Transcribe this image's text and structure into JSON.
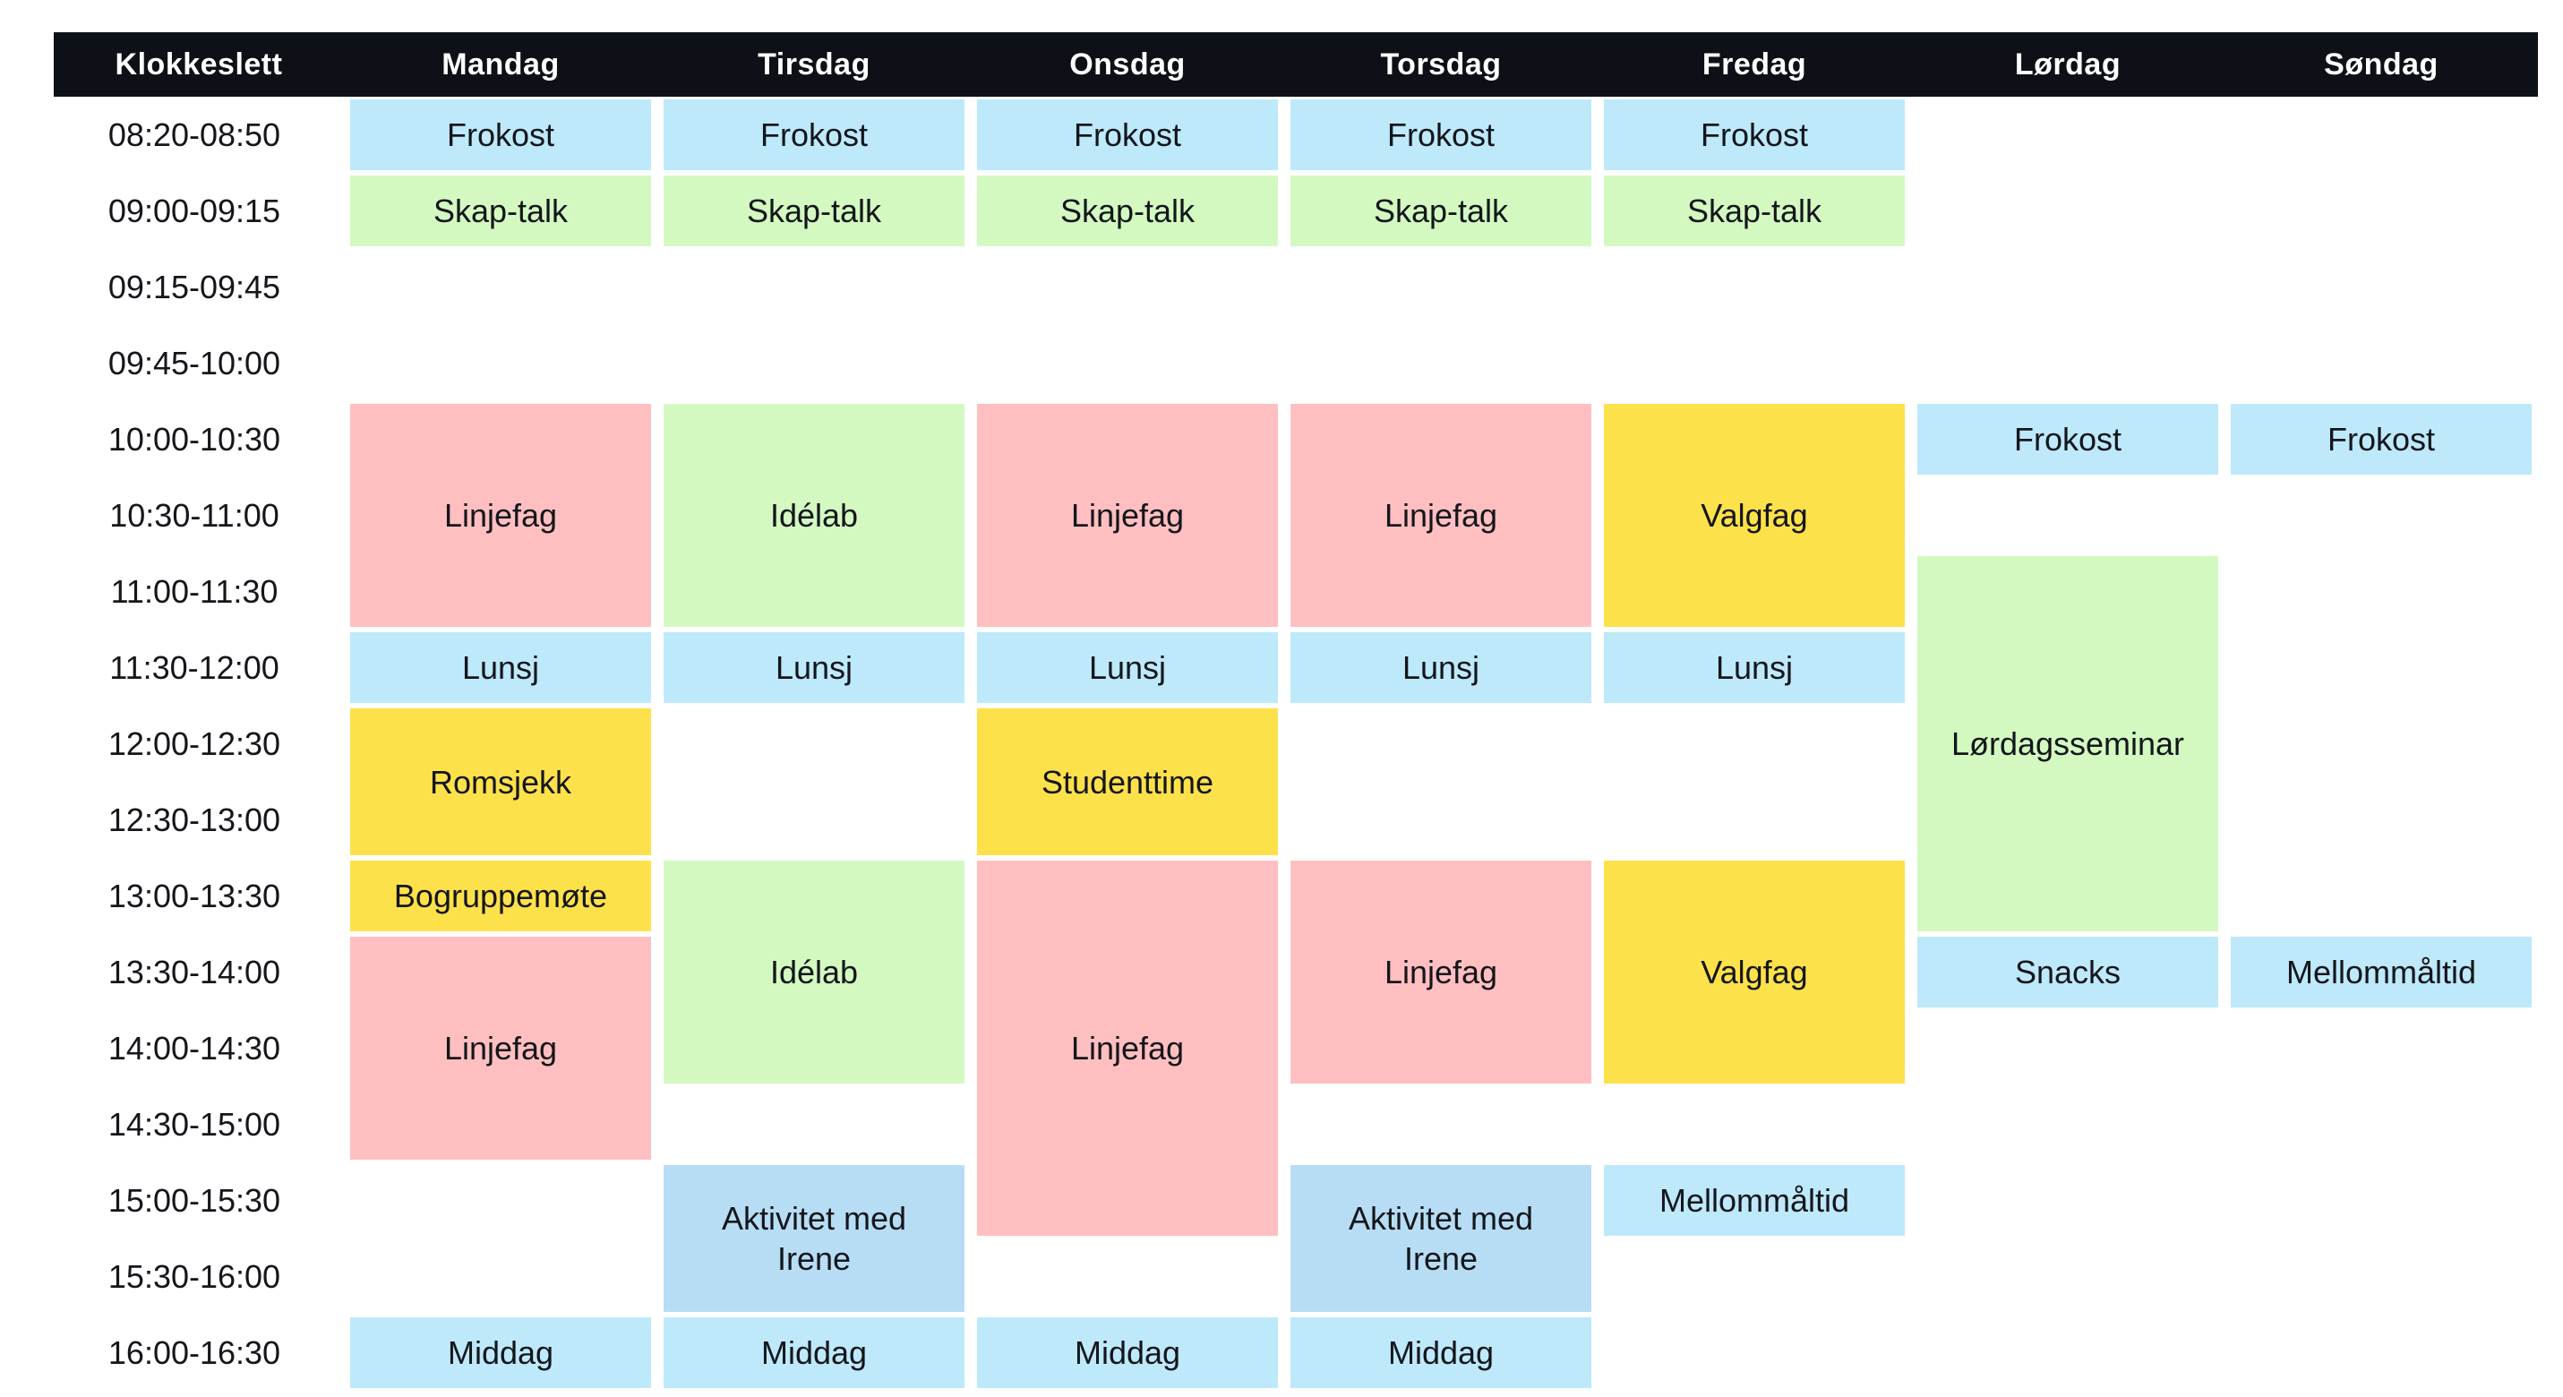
{
  "header": {
    "columns": [
      "Klokkeslett",
      "Mandag",
      "Tirsdag",
      "Onsdag",
      "Torsdag",
      "Fredag",
      "Lørdag",
      "Søndag"
    ]
  },
  "time_slots": [
    "08:20-08:50",
    "09:00-09:15",
    "09:15-09:45",
    "09:45-10:00",
    "10:00-10:30",
    "10:30-11:00",
    "11:00-11:30",
    "11:30-12:00",
    "12:00-12:30",
    "12:30-13:00",
    "13:00-13:30",
    "13:30-14:00",
    "14:00-14:30",
    "14:30-15:00",
    "15:00-15:30",
    "15:30-16:00",
    "16:00-16:30"
  ],
  "colors": {
    "header_bg": "#0d1117",
    "header_text": "#ffffff",
    "time_bg": "#f5f5f5",
    "text": "#14161b",
    "blue": "#bde9fb",
    "activity_blue": "#b7ddf4",
    "green": "#d3f9c1",
    "pink": "#ffbfc1",
    "yellow": "#fde14b"
  },
  "events": [
    {
      "label": "Frokost",
      "day": 1,
      "row": 1,
      "span": 1,
      "color": "blue"
    },
    {
      "label": "Frokost",
      "day": 2,
      "row": 1,
      "span": 1,
      "color": "blue"
    },
    {
      "label": "Frokost",
      "day": 3,
      "row": 1,
      "span": 1,
      "color": "blue"
    },
    {
      "label": "Frokost",
      "day": 4,
      "row": 1,
      "span": 1,
      "color": "blue"
    },
    {
      "label": "Frokost",
      "day": 5,
      "row": 1,
      "span": 1,
      "color": "blue"
    },
    {
      "label": "Skap-talk",
      "day": 1,
      "row": 2,
      "span": 1,
      "color": "green"
    },
    {
      "label": "Skap-talk",
      "day": 2,
      "row": 2,
      "span": 1,
      "color": "green"
    },
    {
      "label": "Skap-talk",
      "day": 3,
      "row": 2,
      "span": 1,
      "color": "green"
    },
    {
      "label": "Skap-talk",
      "day": 4,
      "row": 2,
      "span": 1,
      "color": "green"
    },
    {
      "label": "Skap-talk",
      "day": 5,
      "row": 2,
      "span": 1,
      "color": "green"
    },
    {
      "label": "Linjefag",
      "day": 1,
      "row": 5,
      "span": 3,
      "color": "pink"
    },
    {
      "label": "Idélab",
      "day": 2,
      "row": 5,
      "span": 3,
      "color": "green"
    },
    {
      "label": "Linjefag",
      "day": 3,
      "row": 5,
      "span": 3,
      "color": "pink"
    },
    {
      "label": "Linjefag",
      "day": 4,
      "row": 5,
      "span": 3,
      "color": "pink"
    },
    {
      "label": "Valgfag",
      "day": 5,
      "row": 5,
      "span": 3,
      "color": "yellow"
    },
    {
      "label": "Frokost",
      "day": 6,
      "row": 5,
      "span": 1,
      "color": "blue"
    },
    {
      "label": "Frokost",
      "day": 7,
      "row": 5,
      "span": 1,
      "color": "blue"
    },
    {
      "label": "Lørdagsseminar",
      "day": 6,
      "row": 7,
      "span": 5,
      "color": "green"
    },
    {
      "label": "Lunsj",
      "day": 1,
      "row": 8,
      "span": 1,
      "color": "blue"
    },
    {
      "label": "Lunsj",
      "day": 2,
      "row": 8,
      "span": 1,
      "color": "blue"
    },
    {
      "label": "Lunsj",
      "day": 3,
      "row": 8,
      "span": 1,
      "color": "blue"
    },
    {
      "label": "Lunsj",
      "day": 4,
      "row": 8,
      "span": 1,
      "color": "blue"
    },
    {
      "label": "Lunsj",
      "day": 5,
      "row": 8,
      "span": 1,
      "color": "blue"
    },
    {
      "label": "Romsjekk",
      "day": 1,
      "row": 9,
      "span": 2,
      "color": "yellow"
    },
    {
      "label": "Studenttime",
      "day": 3,
      "row": 9,
      "span": 2,
      "color": "yellow"
    },
    {
      "label": "Bogruppemøte",
      "day": 1,
      "row": 11,
      "span": 1,
      "color": "yellow"
    },
    {
      "label": "Idélab",
      "day": 2,
      "row": 11,
      "span": 3,
      "color": "green"
    },
    {
      "label": "Linjefag",
      "day": 3,
      "row": 11,
      "span": 5,
      "color": "pink"
    },
    {
      "label": "Linjefag",
      "day": 4,
      "row": 11,
      "span": 3,
      "color": "pink"
    },
    {
      "label": "Valgfag",
      "day": 5,
      "row": 11,
      "span": 3,
      "color": "yellow"
    },
    {
      "label": "Linjefag",
      "day": 1,
      "row": 12,
      "span": 3,
      "color": "pink"
    },
    {
      "label": "Snacks",
      "day": 6,
      "row": 12,
      "span": 1,
      "color": "blue"
    },
    {
      "label": "Mellommåltid",
      "day": 7,
      "row": 12,
      "span": 1,
      "color": "blue"
    },
    {
      "label": "Aktivitet med Irene",
      "day": 2,
      "row": 15,
      "span": 2,
      "color": "activity_blue",
      "wrap": true
    },
    {
      "label": "Aktivitet med Irene",
      "day": 4,
      "row": 15,
      "span": 2,
      "color": "activity_blue",
      "wrap": true
    },
    {
      "label": "Mellommåltid",
      "day": 5,
      "row": 15,
      "span": 1,
      "color": "blue"
    },
    {
      "label": "Middag",
      "day": 1,
      "row": 17,
      "span": 1,
      "color": "blue"
    },
    {
      "label": "Middag",
      "day": 2,
      "row": 17,
      "span": 1,
      "color": "blue"
    },
    {
      "label": "Middag",
      "day": 3,
      "row": 17,
      "span": 1,
      "color": "blue"
    },
    {
      "label": "Middag",
      "day": 4,
      "row": 17,
      "span": 1,
      "color": "blue"
    }
  ]
}
